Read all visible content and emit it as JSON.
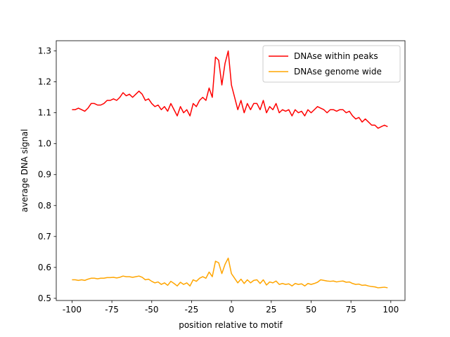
{
  "chart_data": {
    "type": "line",
    "xlabel": "position relative to motif",
    "ylabel": "average DNA signal",
    "x": [
      -100,
      -98,
      -96,
      -94,
      -92,
      -90,
      -88,
      -86,
      -84,
      -82,
      -80,
      -78,
      -76,
      -74,
      -72,
      -70,
      -68,
      -66,
      -64,
      -62,
      -60,
      -58,
      -56,
      -54,
      -52,
      -50,
      -48,
      -46,
      -44,
      -42,
      -40,
      -38,
      -36,
      -34,
      -32,
      -30,
      -28,
      -26,
      -24,
      -22,
      -20,
      -18,
      -16,
      -14,
      -12,
      -10,
      -8,
      -6,
      -4,
      -2,
      0,
      2,
      4,
      6,
      8,
      10,
      12,
      14,
      16,
      18,
      20,
      22,
      24,
      26,
      28,
      30,
      32,
      34,
      36,
      38,
      40,
      42,
      44,
      46,
      48,
      50,
      52,
      54,
      56,
      58,
      60,
      62,
      64,
      66,
      68,
      70,
      72,
      74,
      76,
      78,
      80,
      82,
      84,
      86,
      88,
      90,
      92,
      94,
      96,
      98
    ],
    "series": [
      {
        "name": "DNAse within peaks",
        "color": "#ff0000",
        "values": [
          1.11,
          1.11,
          1.115,
          1.11,
          1.105,
          1.115,
          1.13,
          1.13,
          1.125,
          1.125,
          1.13,
          1.14,
          1.14,
          1.145,
          1.14,
          1.15,
          1.165,
          1.155,
          1.16,
          1.15,
          1.16,
          1.17,
          1.16,
          1.14,
          1.145,
          1.13,
          1.12,
          1.125,
          1.11,
          1.12,
          1.105,
          1.13,
          1.11,
          1.09,
          1.12,
          1.1,
          1.11,
          1.09,
          1.13,
          1.12,
          1.14,
          1.15,
          1.14,
          1.18,
          1.15,
          1.28,
          1.27,
          1.19,
          1.26,
          1.3,
          1.19,
          1.15,
          1.11,
          1.14,
          1.1,
          1.13,
          1.11,
          1.13,
          1.13,
          1.11,
          1.14,
          1.1,
          1.12,
          1.11,
          1.13,
          1.1,
          1.11,
          1.105,
          1.11,
          1.09,
          1.11,
          1.1,
          1.105,
          1.09,
          1.11,
          1.1,
          1.11,
          1.12,
          1.115,
          1.11,
          1.1,
          1.11,
          1.11,
          1.105,
          1.11,
          1.11,
          1.1,
          1.105,
          1.09,
          1.08,
          1.085,
          1.07,
          1.08,
          1.07,
          1.06,
          1.06,
          1.05,
          1.055,
          1.06,
          1.055
        ]
      },
      {
        "name": "DNAse genome wide",
        "color": "#ffa500",
        "values": [
          0.56,
          0.56,
          0.558,
          0.56,
          0.558,
          0.562,
          0.565,
          0.565,
          0.563,
          0.565,
          0.565,
          0.567,
          0.567,
          0.568,
          0.566,
          0.568,
          0.572,
          0.57,
          0.57,
          0.568,
          0.57,
          0.572,
          0.568,
          0.56,
          0.562,
          0.555,
          0.55,
          0.553,
          0.545,
          0.55,
          0.542,
          0.555,
          0.548,
          0.54,
          0.552,
          0.545,
          0.55,
          0.54,
          0.56,
          0.555,
          0.565,
          0.57,
          0.565,
          0.585,
          0.57,
          0.62,
          0.615,
          0.58,
          0.61,
          0.63,
          0.58,
          0.565,
          0.55,
          0.562,
          0.548,
          0.56,
          0.55,
          0.558,
          0.56,
          0.548,
          0.56,
          0.543,
          0.553,
          0.55,
          0.556,
          0.545,
          0.548,
          0.545,
          0.547,
          0.54,
          0.548,
          0.545,
          0.547,
          0.54,
          0.548,
          0.545,
          0.548,
          0.552,
          0.56,
          0.558,
          0.556,
          0.555,
          0.556,
          0.553,
          0.555,
          0.556,
          0.552,
          0.553,
          0.548,
          0.545,
          0.546,
          0.542,
          0.543,
          0.54,
          0.538,
          0.537,
          0.534,
          0.535,
          0.536,
          0.534
        ]
      }
    ],
    "xlim": [
      -109.9,
      108.9
    ],
    "xticks": [
      -100,
      -75,
      -50,
      -25,
      0,
      25,
      50,
      75,
      100
    ],
    "ylim": [
      0.493,
      1.333
    ],
    "yticks": [
      0.5,
      0.6,
      0.7,
      0.8,
      0.9,
      {
        "value": 1.0,
        "label": "1.0"
      },
      1.1,
      1.2,
      1.3
    ],
    "legend": "upper right",
    "grid": false
  }
}
